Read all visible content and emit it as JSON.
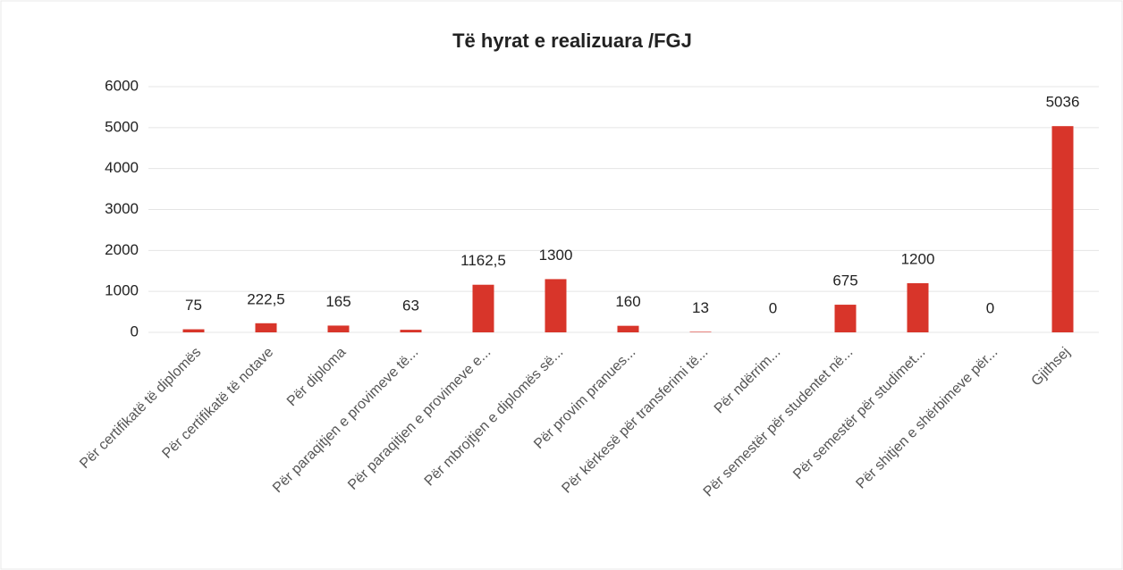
{
  "chart_data": {
    "type": "bar",
    "title": "Të hyrat e realizuara /FGJ",
    "categories": [
      "Për certifikatë të diplomës",
      "Për certifikatë të notave",
      "Për diploma",
      "Për paraqitjen e provimeve të...",
      "Për paraqitjen e provimeve e...",
      "Për mbrojtjen e diplomës së...",
      "Për provim pranues...",
      "Për kërkesë për transferimi të...",
      "Për ndërrim...",
      "Për semestër për studentet në...",
      "Për semestër për studimet...",
      "Për shitjen e shërbimeve për...",
      "Gjithsej"
    ],
    "values": [
      75,
      222.5,
      165,
      63,
      1162.5,
      1300,
      160,
      13,
      0,
      675,
      1200,
      0,
      5036
    ],
    "value_labels": [
      "75",
      "222,5",
      "165",
      "63",
      "1162,5",
      "1300",
      "160",
      "13",
      "0",
      "675",
      "1200",
      "0",
      "5036"
    ],
    "color": "#d8352a",
    "ylim": [
      0,
      6000
    ],
    "yticks": [
      0,
      1000,
      2000,
      3000,
      4000,
      5000,
      6000
    ],
    "grid": true
  }
}
